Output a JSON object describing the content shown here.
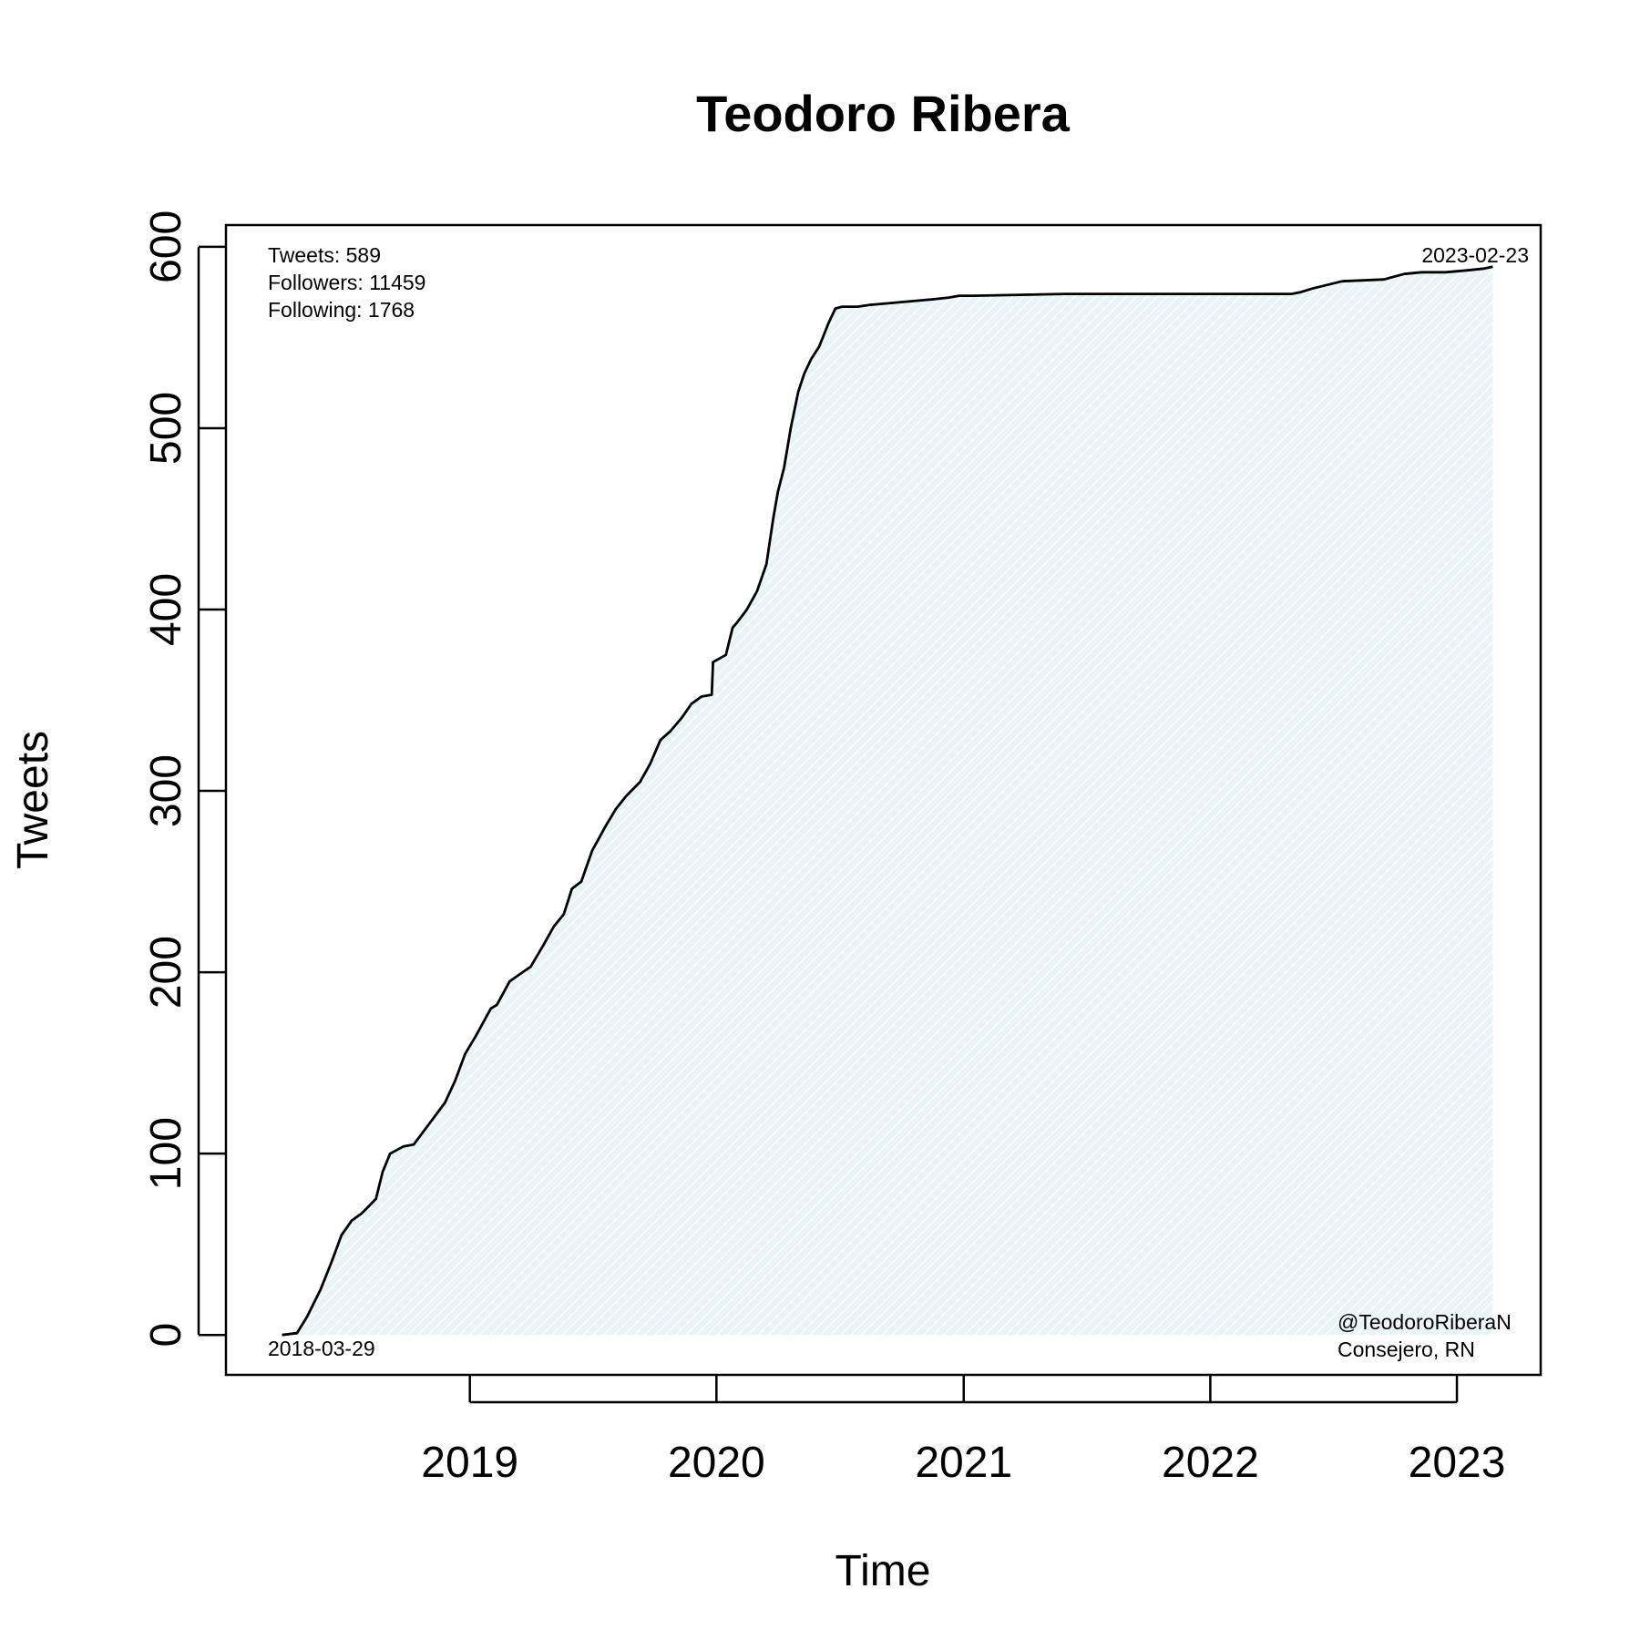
{
  "chart_data": {
    "type": "area",
    "title": "Teodoro Ribera",
    "xlabel": "Time",
    "ylabel": "Tweets",
    "x_ticks": [
      "2019",
      "2020",
      "2021",
      "2022",
      "2023"
    ],
    "y_ticks": [
      0,
      100,
      200,
      300,
      400,
      500,
      600
    ],
    "xlim": [
      "2018-01-05",
      "2023-05-05"
    ],
    "ylim": [
      -22,
      612
    ],
    "grid": false,
    "fill_color": "#e8f4f6",
    "line_color": "#000000",
    "annotations": {
      "stats": [
        "Tweets: 589",
        "Followers: 11459",
        "Following: 1768"
      ],
      "start_date": "2018-03-29",
      "end_date": "2023-02-23",
      "handle": "@TeodoroRiberaN",
      "description": "Consejero, RN"
    },
    "series": [
      {
        "x": [
          "2018-03-29",
          "2018-04-20",
          "2018-05-05",
          "2018-05-25",
          "2018-06-10",
          "2018-06-25",
          "2018-07-10",
          "2018-07-25",
          "2018-08-15",
          "2018-08-25",
          "2018-09-05",
          "2018-09-25",
          "2018-10-10",
          "2018-10-20",
          "2018-11-05",
          "2018-11-25",
          "2018-12-10",
          "2018-12-25",
          "2019-01-10",
          "2019-02-01",
          "2019-02-10",
          "2019-03-01",
          "2019-03-20",
          "2019-04-01",
          "2019-04-20",
          "2019-05-05",
          "2019-05-20",
          "2019-06-01",
          "2019-06-15",
          "2019-07-01",
          "2019-07-20",
          "2019-08-05",
          "2019-08-20",
          "2019-09-10",
          "2019-09-25",
          "2019-10-10",
          "2019-10-25",
          "2019-11-10",
          "2019-11-25",
          "2019-12-10",
          "2019-12-25",
          "2019-12-27",
          "2020-01-15",
          "2020-01-25",
          "2020-02-01",
          "2020-02-15",
          "2020-03-01",
          "2020-03-15",
          "2020-03-25",
          "2020-04-01",
          "2020-04-10",
          "2020-04-20",
          "2020-05-01",
          "2020-05-10",
          "2020-05-20",
          "2020-06-01",
          "2020-06-15",
          "2020-06-25",
          "2020-07-05",
          "2020-07-20",
          "2020-07-28",
          "2020-08-15",
          "2020-09-15",
          "2020-10-15",
          "2020-11-15",
          "2020-12-10",
          "2020-12-25",
          "2021-01-15",
          "2021-06-01",
          "2021-12-01",
          "2022-05-01",
          "2022-05-15",
          "2022-06-01",
          "2022-07-15",
          "2022-09-15",
          "2022-10-15",
          "2022-11-10",
          "2022-12-15",
          "2023-01-15",
          "2023-02-10",
          "2023-02-23"
        ],
        "y": [
          0,
          1,
          10,
          25,
          40,
          55,
          63,
          67,
          75,
          90,
          100,
          104,
          105,
          110,
          118,
          128,
          140,
          155,
          165,
          180,
          182,
          195,
          200,
          203,
          215,
          225,
          232,
          246,
          250,
          267,
          280,
          290,
          297,
          305,
          315,
          328,
          333,
          340,
          348,
          352,
          353,
          371,
          375,
          390,
          393,
          400,
          410,
          425,
          450,
          465,
          478,
          500,
          520,
          530,
          538,
          545,
          558,
          566,
          567,
          567,
          567,
          568,
          569,
          570,
          571,
          572,
          573,
          573,
          574,
          574,
          574,
          575,
          577,
          581,
          582,
          585,
          586,
          586,
          587,
          588,
          589
        ]
      }
    ]
  }
}
